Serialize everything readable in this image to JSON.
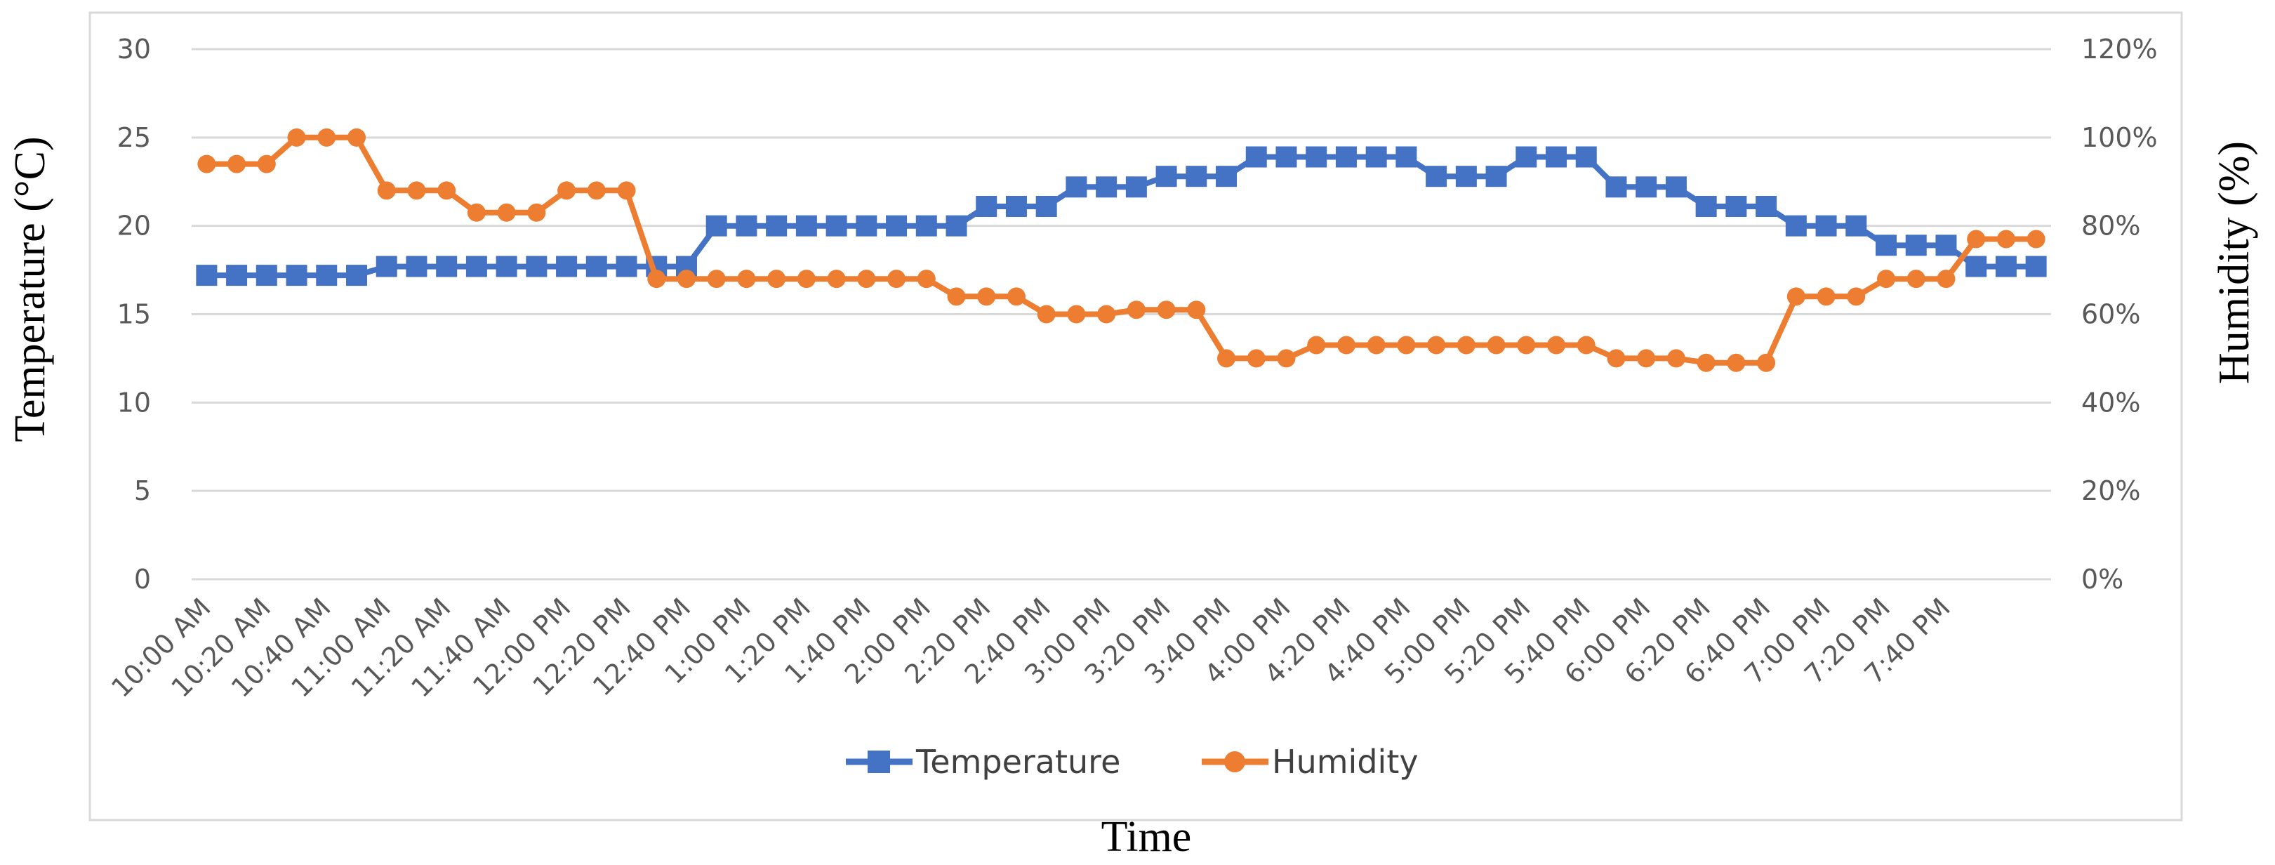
{
  "chart_data": {
    "type": "line",
    "title": "",
    "xlabel": "Time",
    "ylabel": "Temperature (°C)",
    "y2label": "Humidity (%)",
    "ylim": [
      0,
      30
    ],
    "y2lim": [
      0,
      120
    ],
    "y_ticks": [
      "0",
      "5",
      "10",
      "15",
      "20",
      "25",
      "30"
    ],
    "y2_ticks": [
      "0%",
      "20%",
      "40%",
      "60%",
      "80%",
      "100%",
      "120%"
    ],
    "x_tick_labels": [
      "10:00 AM",
      "10:20 AM",
      "10:40 AM",
      "11:00 AM",
      "11:20 AM",
      "11:40 AM",
      "12:00 PM",
      "12:20 PM",
      "12:40 PM",
      "1:00 PM",
      "1:20 PM",
      "1:40 PM",
      "2:00 PM",
      "2:20 PM",
      "2:40 PM",
      "3:00 PM",
      "3:20 PM",
      "3:40 PM",
      "4:00 PM",
      "4:20 PM",
      "4:40 PM",
      "5:00 PM",
      "5:20 PM",
      "5:40 PM",
      "6:00 PM",
      "6:20 PM",
      "6:40 PM",
      "7:00 PM",
      "7:20 PM",
      "7:40 PM"
    ],
    "interval_minutes": 10,
    "grid": true,
    "legend_position": "bottom",
    "series": [
      {
        "name": "Temperature",
        "axis": "left",
        "color": "#4472C4",
        "marker": "square",
        "values": [
          17.2,
          17.2,
          17.2,
          17.2,
          17.2,
          17.2,
          17.7,
          17.7,
          17.7,
          17.7,
          17.7,
          17.7,
          17.7,
          17.7,
          17.7,
          17.7,
          17.7,
          20.0,
          20.0,
          20.0,
          20.0,
          20.0,
          20.0,
          20.0,
          20.0,
          20.0,
          21.1,
          21.1,
          21.1,
          22.2,
          22.2,
          22.2,
          22.8,
          22.8,
          22.8,
          23.9,
          23.9,
          23.9,
          23.9,
          23.9,
          23.9,
          22.8,
          22.8,
          22.8,
          23.9,
          23.9,
          23.9,
          22.2,
          22.2,
          22.2,
          21.1,
          21.1,
          21.1,
          20.0,
          20.0,
          20.0,
          18.9,
          18.9,
          18.9,
          17.7,
          17.7,
          17.7
        ]
      },
      {
        "name": "Humidity",
        "axis": "right",
        "color": "#ED7D31",
        "marker": "circle",
        "values": [
          94,
          94,
          94,
          100,
          100,
          100,
          88,
          88,
          88,
          83,
          83,
          83,
          88,
          88,
          88,
          68,
          68,
          68,
          68,
          68,
          68,
          68,
          68,
          68,
          68,
          64,
          64,
          64,
          60,
          60,
          60,
          61,
          61,
          61,
          50,
          50,
          50,
          53,
          53,
          53,
          53,
          53,
          53,
          53,
          53,
          53,
          53,
          50,
          50,
          50,
          49,
          49,
          49,
          64,
          64,
          64,
          68,
          68,
          68,
          77,
          77,
          77
        ]
      }
    ]
  }
}
